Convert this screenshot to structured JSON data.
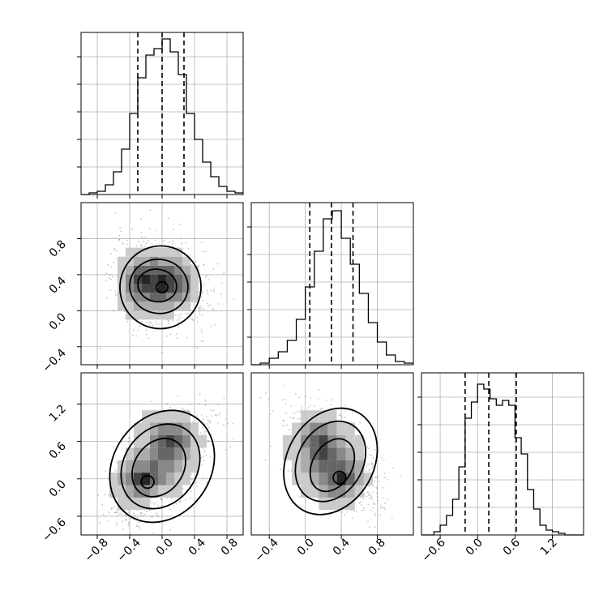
{
  "figure": {
    "background": "#ffffff",
    "grid_color": "#b0b0b0",
    "line_color": "#000000",
    "scatter_color": "#555555",
    "density_colors": [
      "#e6e6e6",
      "#c8c8c8",
      "#a8a8a8",
      "#848484",
      "#5f5f5f",
      "#3b3b3b",
      "#1a1a1a"
    ]
  },
  "chart_data": [
    {
      "type": "histogram",
      "panel": "p0_hist",
      "variable_index": 0,
      "xlim": [
        -1.0,
        1.0
      ],
      "ylim": [
        0,
        1.0
      ],
      "bin_edges": [
        -1.0,
        -0.9,
        -0.8,
        -0.7,
        -0.6,
        -0.5,
        -0.4,
        -0.3,
        -0.2,
        -0.1,
        0.0,
        0.1,
        0.2,
        0.3,
        0.4,
        0.5,
        0.6,
        0.7,
        0.8,
        0.9,
        1.0
      ],
      "counts": [
        0.0,
        0.01,
        0.02,
        0.06,
        0.14,
        0.28,
        0.5,
        0.72,
        0.86,
        0.9,
        0.96,
        0.88,
        0.74,
        0.5,
        0.34,
        0.2,
        0.11,
        0.05,
        0.02,
        0.01
      ],
      "quantiles": [
        -0.3,
        0.0,
        0.27
      ],
      "yticks_count": 5,
      "xticks": [
        -0.8,
        -0.4,
        0.0,
        0.4,
        0.8
      ],
      "grid": true
    },
    {
      "type": "heatmap",
      "panel": "p10_2d",
      "x_variable": 0,
      "y_variable": 1,
      "xlim": [
        -1.0,
        1.0
      ],
      "ylim": [
        -0.6,
        1.2
      ],
      "density_grid": {
        "x_centers": [
          -0.6,
          -0.5,
          -0.4,
          -0.3,
          -0.2,
          -0.1,
          0.0,
          0.1,
          0.2,
          0.3,
          0.4,
          0.5
        ],
        "y_centers": [
          -0.05,
          0.05,
          0.15,
          0.25,
          0.35,
          0.45,
          0.55,
          0.65
        ],
        "values": [
          [
            0,
            0,
            1,
            1,
            1,
            1,
            1,
            1,
            0,
            0,
            0,
            0
          ],
          [
            0,
            1,
            1,
            2,
            2,
            2,
            2,
            2,
            1,
            1,
            0,
            0
          ],
          [
            0,
            1,
            2,
            3,
            3,
            4,
            4,
            3,
            3,
            2,
            1,
            0
          ],
          [
            0,
            1,
            3,
            4,
            5,
            5,
            6,
            5,
            4,
            3,
            1,
            0
          ],
          [
            0,
            1,
            3,
            5,
            6,
            5,
            6,
            5,
            4,
            3,
            1,
            0
          ],
          [
            0,
            1,
            2,
            4,
            4,
            4,
            4,
            4,
            3,
            2,
            1,
            0
          ],
          [
            0,
            1,
            1,
            2,
            2,
            3,
            2,
            2,
            2,
            1,
            0,
            0
          ],
          [
            0,
            0,
            1,
            1,
            1,
            1,
            1,
            1,
            1,
            0,
            0,
            0
          ]
        ]
      },
      "contours_1sigma": [
        [
          -0.3,
          0.37
        ],
        [
          -0.05,
          0.35
        ],
        [
          0.15,
          0.25
        ],
        [
          0.1,
          0.16
        ],
        [
          -0.1,
          0.15
        ],
        [
          -0.3,
          0.22
        ]
      ],
      "xticks": [
        -0.8,
        -0.4,
        0.0,
        0.4,
        0.8
      ],
      "yticks": [
        -0.4,
        0.0,
        0.4,
        0.8
      ],
      "grid": true
    },
    {
      "type": "histogram",
      "panel": "p1_hist",
      "variable_index": 1,
      "xlim": [
        -0.6,
        1.2
      ],
      "ylim": [
        0,
        1.0
      ],
      "bin_edges": [
        -0.6,
        -0.5,
        -0.4,
        -0.3,
        -0.2,
        -0.1,
        0.0,
        0.1,
        0.2,
        0.3,
        0.4,
        0.5,
        0.6,
        0.7,
        0.8,
        0.9,
        1.0,
        1.1,
        1.2
      ],
      "counts": [
        0.0,
        0.01,
        0.04,
        0.08,
        0.15,
        0.28,
        0.48,
        0.7,
        0.9,
        0.95,
        0.78,
        0.62,
        0.44,
        0.26,
        0.14,
        0.06,
        0.02,
        0.01
      ],
      "quantiles": [
        0.05,
        0.29,
        0.53
      ],
      "yticks_count": 5,
      "xticks": [
        -0.4,
        0.0,
        0.4,
        0.8
      ],
      "grid": true
    },
    {
      "type": "heatmap",
      "panel": "p20_2d",
      "x_variable": 0,
      "y_variable": 2,
      "xlim": [
        -1.0,
        1.0
      ],
      "ylim": [
        -0.9,
        1.7
      ],
      "density_grid": {
        "x_centers": [
          -0.6,
          -0.5,
          -0.4,
          -0.3,
          -0.2,
          -0.1,
          0.0,
          0.1,
          0.2,
          0.3,
          0.4,
          0.5,
          0.6
        ],
        "y_centers": [
          -0.4,
          -0.2,
          0.0,
          0.2,
          0.4,
          0.6,
          0.8,
          1.0
        ],
        "values": [
          [
            0,
            1,
            1,
            1,
            1,
            0,
            0,
            0,
            0,
            0,
            0,
            0,
            0
          ],
          [
            1,
            1,
            2,
            3,
            3,
            2,
            1,
            1,
            1,
            0,
            0,
            0,
            0
          ],
          [
            1,
            2,
            3,
            5,
            6,
            4,
            3,
            2,
            1,
            1,
            0,
            0,
            0
          ],
          [
            0,
            1,
            2,
            3,
            3,
            4,
            3,
            3,
            2,
            1,
            1,
            0,
            0
          ],
          [
            0,
            0,
            1,
            2,
            2,
            3,
            4,
            4,
            3,
            2,
            1,
            0,
            0
          ],
          [
            0,
            0,
            0,
            1,
            1,
            3,
            4,
            5,
            4,
            3,
            1,
            1,
            0
          ],
          [
            0,
            0,
            0,
            1,
            1,
            2,
            3,
            3,
            3,
            2,
            1,
            0,
            0
          ],
          [
            0,
            0,
            0,
            0,
            1,
            1,
            1,
            1,
            1,
            1,
            0,
            0,
            0
          ]
        ]
      },
      "xticks": [
        -0.8,
        -0.4,
        0.0,
        0.4,
        0.8
      ],
      "yticks": [
        -0.6,
        0.0,
        0.6,
        1.2
      ],
      "grid": true
    },
    {
      "type": "heatmap",
      "panel": "p21_2d",
      "x_variable": 1,
      "y_variable": 2,
      "xlim": [
        -0.6,
        1.2
      ],
      "ylim": [
        -0.9,
        1.7
      ],
      "density_grid": {
        "x_centers": [
          -0.2,
          -0.1,
          0.0,
          0.1,
          0.2,
          0.3,
          0.4,
          0.5,
          0.6,
          0.7
        ],
        "y_centers": [
          -0.4,
          -0.2,
          0.0,
          0.2,
          0.4,
          0.6,
          0.8,
          1.0
        ],
        "values": [
          [
            0,
            0,
            0,
            0,
            1,
            1,
            1,
            1,
            0,
            0
          ],
          [
            0,
            0,
            1,
            1,
            2,
            3,
            3,
            2,
            1,
            0
          ],
          [
            0,
            1,
            1,
            2,
            3,
            4,
            6,
            4,
            2,
            1
          ],
          [
            0,
            1,
            2,
            3,
            4,
            4,
            4,
            3,
            2,
            0
          ],
          [
            1,
            1,
            2,
            4,
            5,
            4,
            3,
            2,
            1,
            0
          ],
          [
            1,
            1,
            3,
            4,
            5,
            3,
            2,
            1,
            1,
            0
          ],
          [
            0,
            1,
            2,
            3,
            3,
            2,
            1,
            1,
            0,
            0
          ],
          [
            0,
            0,
            1,
            1,
            1,
            1,
            0,
            0,
            0,
            0
          ]
        ]
      },
      "xticks": [
        -0.4,
        0.0,
        0.4,
        0.8
      ],
      "grid": true
    },
    {
      "type": "histogram",
      "panel": "p2_hist",
      "variable_index": 2,
      "xlim": [
        -0.9,
        1.7
      ],
      "ylim": [
        0,
        1.0
      ],
      "bin_edges": [
        -0.9,
        -0.8,
        -0.7,
        -0.6,
        -0.5,
        -0.4,
        -0.3,
        -0.2,
        -0.1,
        0.0,
        0.1,
        0.2,
        0.3,
        0.4,
        0.5,
        0.6,
        0.7,
        0.8,
        0.9,
        1.0,
        1.1,
        1.2,
        1.3,
        1.4,
        1.5,
        1.6,
        1.7
      ],
      "counts": [
        0.0,
        0.0,
        0.02,
        0.06,
        0.12,
        0.22,
        0.42,
        0.72,
        0.82,
        0.93,
        0.9,
        0.84,
        0.8,
        0.83,
        0.8,
        0.6,
        0.5,
        0.28,
        0.16,
        0.06,
        0.03,
        0.02,
        0.01,
        0.0,
        0.0,
        0.0
      ],
      "quantiles": [
        -0.2,
        0.18,
        0.62
      ],
      "yticks_count": 5,
      "xticks": [
        -0.6,
        0.0,
        0.6,
        1.2
      ],
      "grid": true
    }
  ],
  "tick_labels": {
    "p10_y": [
      "−0.4",
      "0.0",
      "0.4",
      "0.8"
    ],
    "p20_y": [
      "−0.6",
      "0.0",
      "0.6",
      "1.2"
    ],
    "p20_x": [
      "−0.8",
      "−0.4",
      "0.0",
      "0.4",
      "0.8"
    ],
    "p21_x": [
      "−0.4",
      "0.0",
      "0.4",
      "0.8"
    ],
    "p2_x": [
      "−0.6",
      "0.0",
      "0.6",
      "1.2"
    ]
  }
}
